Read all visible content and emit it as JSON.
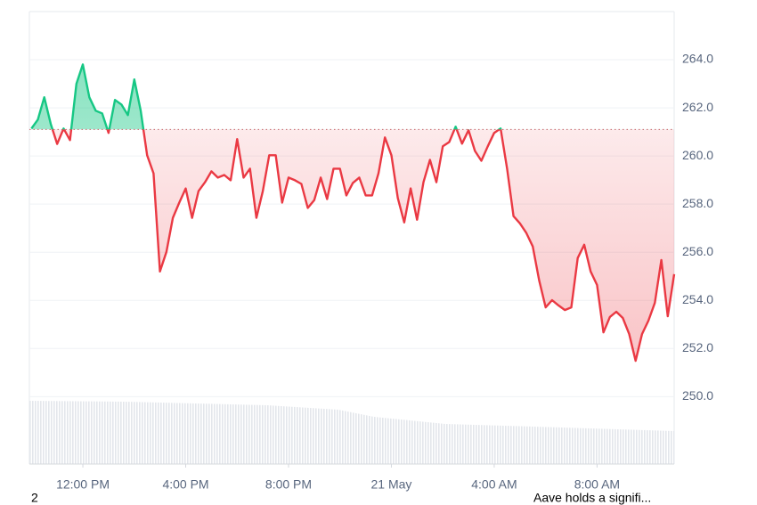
{
  "chart_data": {
    "type": "line",
    "baseline": 261.1,
    "colors": {
      "up": "#16c784",
      "down": "#ea3943"
    },
    "xlim": [
      -2.08,
      23.0
    ],
    "xticks": [
      {
        "value": 0,
        "label": "12:00 PM"
      },
      {
        "value": 4,
        "label": "4:00 PM"
      },
      {
        "value": 8,
        "label": "8:00 PM"
      },
      {
        "value": 12,
        "label": "21 May"
      },
      {
        "value": 16,
        "label": "4:00 AM"
      },
      {
        "value": 20,
        "label": "8:00 AM"
      }
    ],
    "ylim": [
      247.2,
      266.0
    ],
    "yticks": [
      {
        "value": 250,
        "label": "250.0"
      },
      {
        "value": 252,
        "label": "252.0"
      },
      {
        "value": 254,
        "label": "254.0"
      },
      {
        "value": 256,
        "label": "256.0"
      },
      {
        "value": 258,
        "label": "258.0"
      },
      {
        "value": 260,
        "label": "260.0"
      },
      {
        "value": 262,
        "label": "262.0"
      },
      {
        "value": 264,
        "label": "264.0"
      }
    ],
    "grid": true,
    "x": [
      -2.0,
      -1.75,
      -1.5,
      -1.25,
      -1.0,
      -0.75,
      -0.5,
      -0.25,
      0.0,
      0.25,
      0.5,
      0.75,
      1.0,
      1.25,
      1.5,
      1.75,
      2.0,
      2.25,
      2.5,
      2.75,
      3.0,
      3.25,
      3.5,
      3.75,
      4.0,
      4.25,
      4.5,
      4.75,
      5.0,
      5.25,
      5.5,
      5.75,
      6.0,
      6.25,
      6.5,
      6.75,
      7.0,
      7.25,
      7.5,
      7.75,
      8.0,
      8.25,
      8.5,
      8.75,
      9.0,
      9.25,
      9.5,
      9.75,
      10.0,
      10.25,
      10.5,
      10.75,
      11.0,
      11.25,
      11.5,
      11.75,
      12.0,
      12.25,
      12.5,
      12.75,
      13.0,
      13.25,
      13.5,
      13.75,
      14.0,
      14.25,
      14.5,
      14.75,
      15.0,
      15.25,
      15.5,
      15.75,
      16.0,
      16.25,
      16.5,
      16.75,
      17.0,
      17.25,
      17.5,
      17.75,
      18.0,
      18.25,
      18.5,
      18.75,
      19.0,
      19.25,
      19.5,
      19.75,
      20.0,
      20.25,
      20.5,
      20.75,
      21.0,
      21.25,
      21.5,
      21.75,
      22.0,
      22.25,
      22.5,
      22.75,
      23.0
    ],
    "values": [
      261.14,
      261.51,
      262.44,
      261.33,
      260.5,
      261.14,
      260.66,
      263.0,
      263.8,
      262.44,
      261.88,
      261.77,
      260.96,
      262.33,
      262.14,
      261.7,
      263.18,
      261.88,
      260.03,
      259.28,
      255.2,
      256.02,
      257.43,
      258.06,
      258.65,
      257.43,
      258.54,
      258.91,
      259.36,
      259.1,
      259.21,
      258.99,
      260.7,
      259.1,
      259.47,
      257.43,
      258.54,
      260.03,
      260.03,
      258.06,
      259.1,
      258.99,
      258.84,
      257.84,
      258.17,
      259.1,
      258.21,
      259.47,
      259.47,
      258.36,
      258.88,
      259.1,
      258.36,
      258.36,
      259.28,
      260.77,
      260.03,
      258.25,
      257.24,
      258.65,
      257.35,
      258.91,
      259.84,
      258.91,
      260.4,
      260.58,
      261.22,
      260.51,
      261.07,
      260.21,
      259.8,
      260.4,
      260.96,
      261.14,
      259.47,
      257.5,
      257.2,
      256.8,
      256.24,
      254.83,
      253.71,
      254.01,
      253.79,
      253.6,
      253.71,
      255.76,
      256.31,
      255.2,
      254.64,
      252.67,
      253.31,
      253.53,
      253.27,
      252.6,
      251.49,
      252.6,
      253.16,
      253.9,
      255.68,
      253.34,
      255.09
    ],
    "annotations": [
      "2",
      "Aave holds a signifi..."
    ]
  }
}
